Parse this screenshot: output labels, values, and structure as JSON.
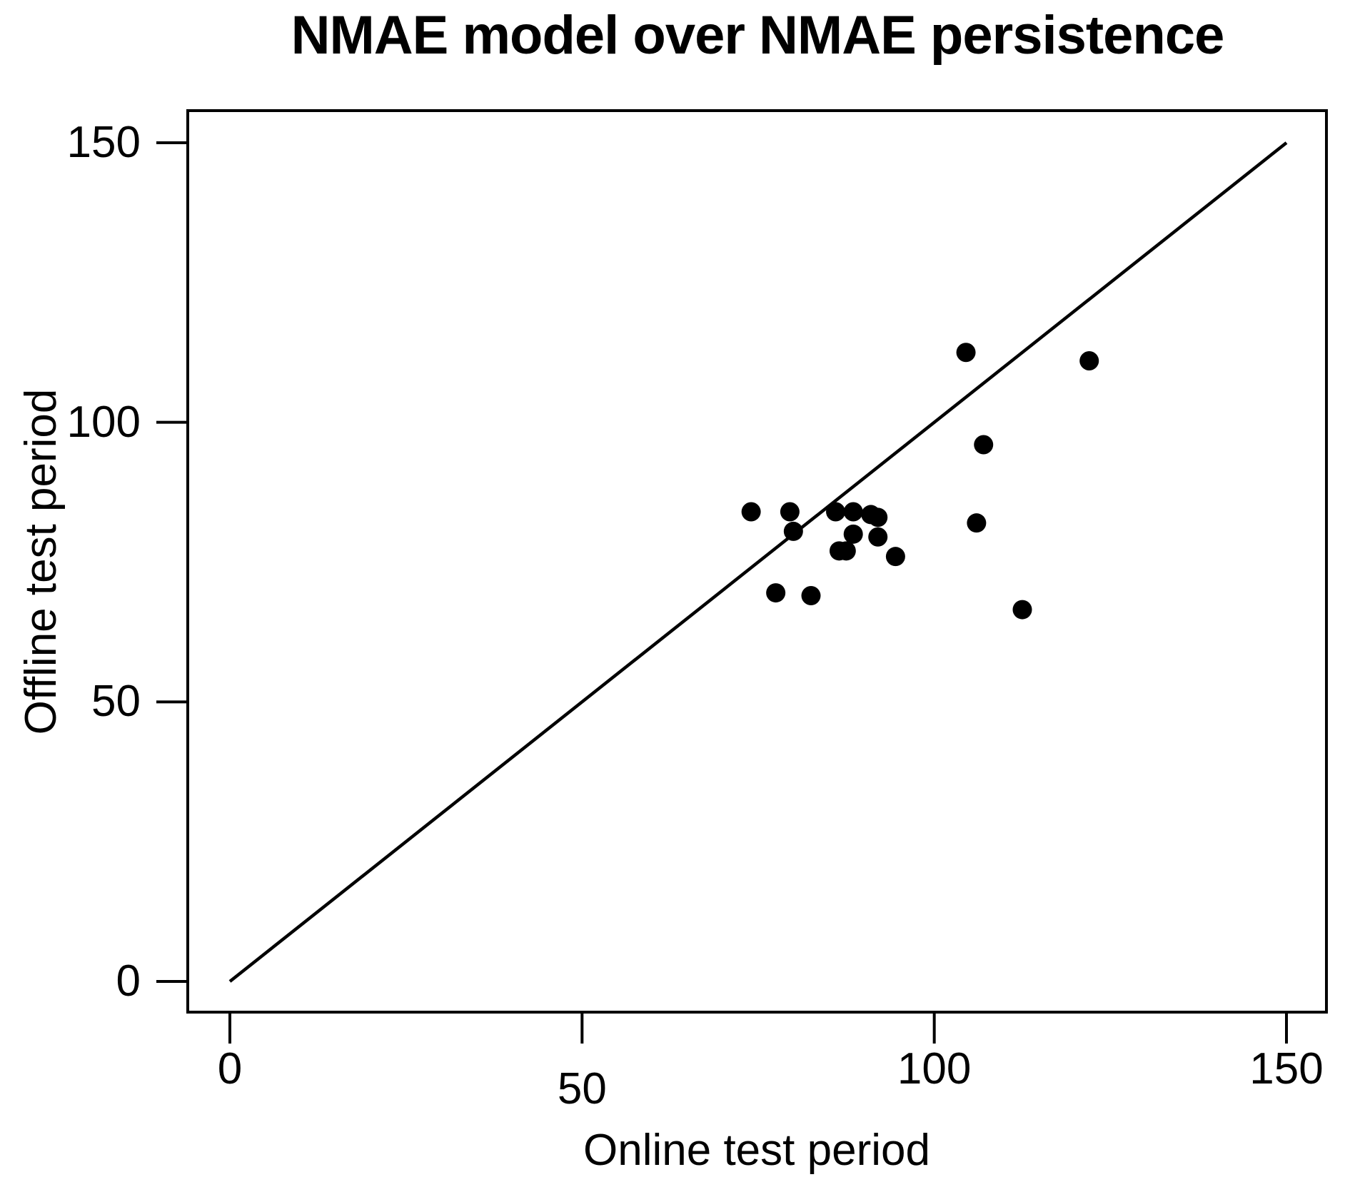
{
  "title": "NMAE model over NMAE persistence",
  "axes": {
    "x_label": "Online test period",
    "y_label": "Offline test period",
    "x_tick_labels": [
      "0",
      "50",
      "100",
      "150"
    ],
    "y_tick_labels": [
      "0",
      "50",
      "100",
      "150"
    ]
  },
  "colors": {
    "foreground": "#000000",
    "background": "#ffffff"
  },
  "chart_data": {
    "type": "scatter",
    "title": "NMAE model over NMAE persistence",
    "xlabel": "Online test period",
    "ylabel": "Offline test period",
    "xlim": [
      0,
      150
    ],
    "ylim": [
      0,
      150
    ],
    "x_ticks": [
      0,
      50,
      100,
      150
    ],
    "y_ticks": [
      0,
      50,
      100,
      150
    ],
    "grid": false,
    "legend": "none",
    "marker": {
      "shape": "circle",
      "color": "#000000",
      "radius_px": 13.5
    },
    "reference_line": {
      "type": "identity",
      "x1": 0,
      "y1": 0,
      "x2": 150,
      "y2": 150
    },
    "points": [
      [
        74,
        84
      ],
      [
        79.5,
        84
      ],
      [
        80,
        80.5
      ],
      [
        86,
        84
      ],
      [
        88.5,
        84
      ],
      [
        91,
        83.5
      ],
      [
        92,
        83
      ],
      [
        88.5,
        80
      ],
      [
        92,
        79.5
      ],
      [
        86.5,
        77
      ],
      [
        87.5,
        77
      ],
      [
        94.5,
        76
      ],
      [
        77.5,
        69.5
      ],
      [
        82.5,
        69
      ],
      [
        104.5,
        112.5
      ],
      [
        122,
        111
      ],
      [
        107,
        96
      ],
      [
        106,
        82
      ],
      [
        112.5,
        66.5
      ]
    ],
    "layout_hints": {
      "x_tick_label_dy": [
        0,
        28,
        0,
        0
      ],
      "legend_position": "none"
    }
  }
}
